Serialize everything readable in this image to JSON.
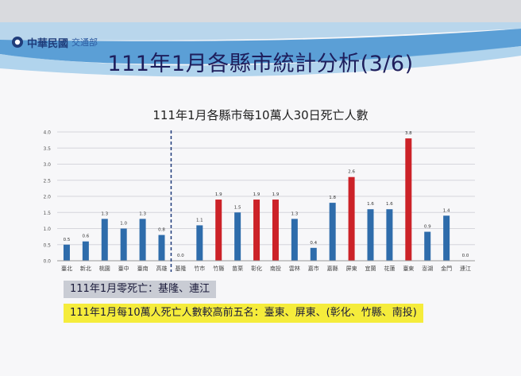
{
  "header": {
    "logo_text": "中華民國",
    "agency_text": "交通部",
    "title": "111年1月各縣市統計分析(3/6)"
  },
  "notes": {
    "zero_deaths": "111年1月零死亡：基隆、連江",
    "top_five": "111年1月每10萬人死亡人數較高前五名：臺東、屏東、(彰化、竹縣、南投)"
  },
  "colors": {
    "bar_blue": "#2e6cab",
    "bar_red": "#cc2228",
    "title_color": "#1e1e5c",
    "highlight_yellow": "#f5ec3b"
  },
  "chart_data": {
    "type": "bar",
    "title": "111年1月各縣市每10萬人30日死亡人數",
    "xlabel": "",
    "ylabel": "",
    "ylim": [
      0,
      4.0
    ],
    "yticks": [
      "0.0",
      "0.5",
      "1.0",
      "1.5",
      "2.0",
      "2.5",
      "3.0",
      "3.5",
      "4.0"
    ],
    "grid": true,
    "categories": [
      "臺北",
      "新北",
      "桃園",
      "臺中",
      "臺南",
      "高雄",
      "基隆",
      "竹市",
      "竹縣",
      "苗栗",
      "彰化",
      "南投",
      "雲林",
      "嘉市",
      "嘉縣",
      "屏東",
      "宜蘭",
      "花蓮",
      "臺東",
      "澎湖",
      "金門",
      "連江"
    ],
    "values": [
      0.5,
      0.6,
      1.3,
      1.0,
      1.3,
      0.8,
      0.0,
      1.1,
      1.9,
      1.5,
      1.9,
      1.9,
      1.3,
      0.4,
      1.8,
      2.6,
      1.6,
      1.6,
      3.8,
      0.9,
      1.4,
      0.0
    ],
    "value_labels": [
      "0.5",
      "0.6",
      "1.3",
      "1.0",
      "1.3",
      "0.8",
      "0.0",
      "1.1",
      "1.9",
      "1.5",
      "1.9",
      "1.9",
      "1.3",
      "0.4",
      "1.8",
      "2.6",
      "1.6",
      "1.6",
      "3.8",
      "0.9",
      "1.4",
      "0.0"
    ],
    "highlighted": [
      "竹縣",
      "彰化",
      "南投",
      "屏東",
      "臺東"
    ],
    "divider_after": "高雄"
  }
}
